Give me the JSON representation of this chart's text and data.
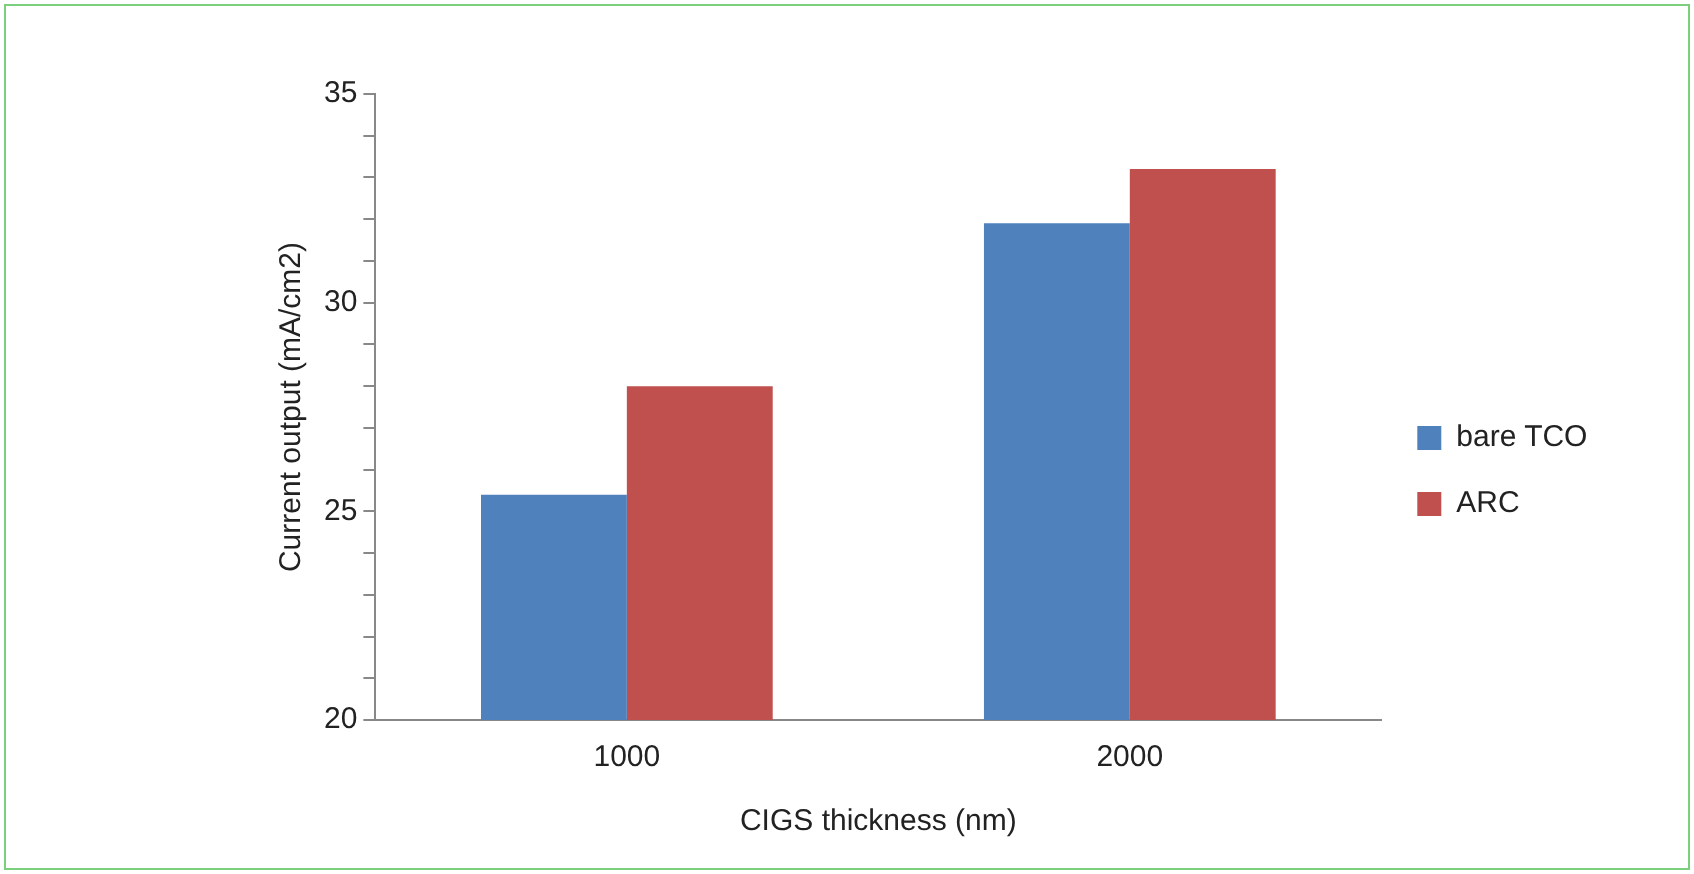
{
  "chart_data": {
    "type": "bar",
    "xlabel": "CIGS thickness (nm)",
    "ylabel": "Current output (mA/cm2)",
    "categories": [
      "1000",
      "2000"
    ],
    "series": [
      {
        "name": "bare TCO",
        "color": "#4f81bd",
        "values": [
          25.4,
          31.9
        ]
      },
      {
        "name": "ARC",
        "color": "#c0504d",
        "values": [
          28.0,
          33.2
        ]
      }
    ],
    "ylim": [
      20,
      35
    ],
    "yticks": [
      20,
      {
        "value": 21,
        "label": null
      },
      {
        "value": 22,
        "label": null
      },
      {
        "value": 23,
        "label": null
      },
      {
        "value": 24,
        "label": null
      },
      25,
      {
        "value": 26,
        "label": null
      },
      {
        "value": 27,
        "label": null
      },
      {
        "value": 28,
        "label": null
      },
      {
        "value": 29,
        "label": null
      },
      30,
      {
        "value": 31,
        "label": null
      },
      {
        "value": 32,
        "label": null
      },
      {
        "value": 33,
        "label": null
      },
      {
        "value": 34,
        "label": null
      },
      35
    ],
    "grid": false,
    "legend": "right"
  }
}
